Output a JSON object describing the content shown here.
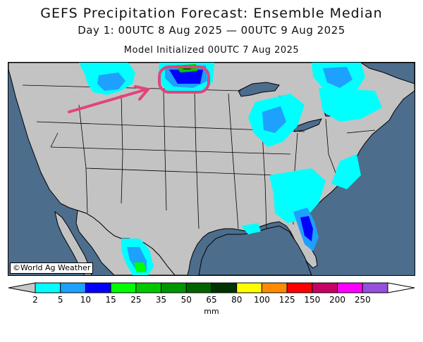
{
  "header": {
    "title": "GEFS Precipitation Forecast: Ensemble Median",
    "subtitle": "Day 1: 00UTC 8 Aug 2025 — 00UTC 9 Aug 2025",
    "init": "Model Initialized 00UTC 7 Aug 2025"
  },
  "map": {
    "credit": "©World Ag Weather",
    "colors": {
      "ocean": "#4d6d8c",
      "land": "#c3c3c3",
      "border": "#000000",
      "highlight": "#e0457a"
    }
  },
  "legend": {
    "unit": "mm",
    "min_color": "#c8c8c8",
    "max_color": "#ffffff",
    "bins": [
      {
        "label": "2",
        "color": "#00ffff"
      },
      {
        "label": "5",
        "color": "#1ea0ff"
      },
      {
        "label": "10",
        "color": "#0000ff"
      },
      {
        "label": "15",
        "color": "#00ff00"
      },
      {
        "label": "25",
        "color": "#00c800"
      },
      {
        "label": "35",
        "color": "#009600"
      },
      {
        "label": "50",
        "color": "#006400"
      },
      {
        "label": "65",
        "color": "#003200"
      },
      {
        "label": "80",
        "color": "#ffff00"
      },
      {
        "label": "100",
        "color": "#ff8c00"
      },
      {
        "label": "125",
        "color": "#ff0000"
      },
      {
        "label": "150",
        "color": "#c80064"
      },
      {
        "label": "200",
        "color": "#ff00ff"
      },
      {
        "label": "250",
        "color": "#9650dc"
      }
    ]
  }
}
